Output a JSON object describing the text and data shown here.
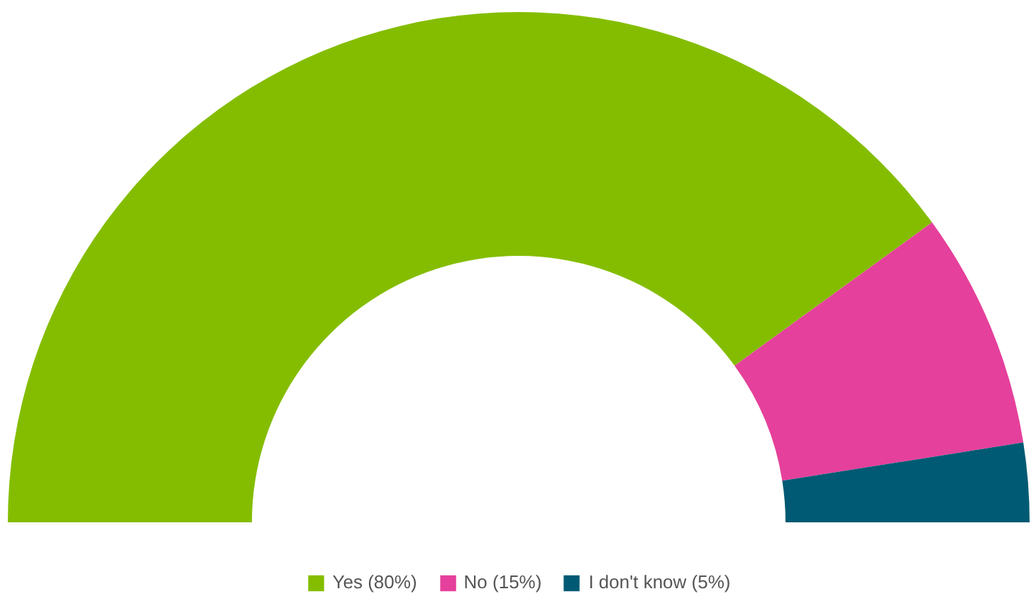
{
  "chart_data": {
    "type": "donut",
    "categories": [
      "Yes (80%)",
      "No (15%)",
      "I don't know (5%)"
    ],
    "values": [
      80,
      15,
      5
    ],
    "colors": [
      "#84bd00",
      "#e5409b",
      "#005a73"
    ],
    "legend": "bottom"
  }
}
